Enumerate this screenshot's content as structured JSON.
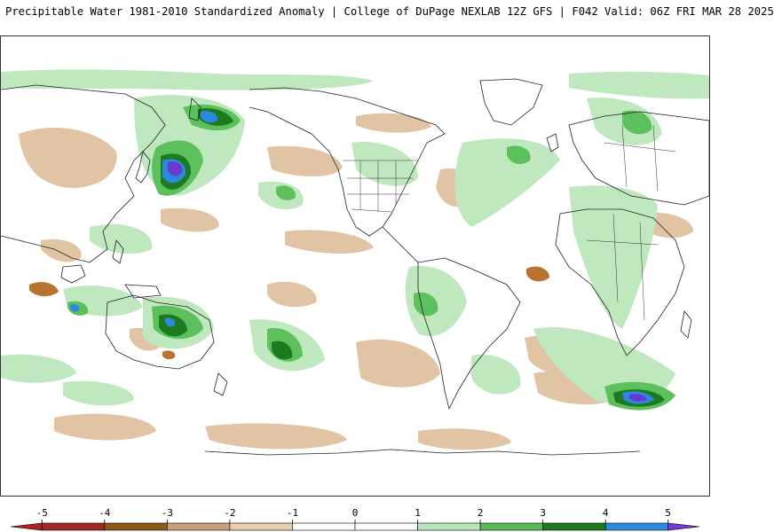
{
  "header": {
    "title": "Precipitable Water 1981-2010 Standardized Anomaly | College of DuPage NEXLAB  12Z GFS | F042 Valid: 06Z FRI MAR 28 2025"
  },
  "map": {
    "projection": "global equirectangular (Pacific-centered)",
    "variable": "precipitable water standardized anomaly"
  },
  "legend": {
    "ticks": [
      "-5",
      "-4",
      "-3",
      "-2",
      "-1",
      "0",
      "1",
      "2",
      "3",
      "4",
      "5"
    ],
    "bins": [
      {
        "from": -5.5,
        "to": -5,
        "color": "#b22222"
      },
      {
        "from": -5,
        "to": -4,
        "color": "#a02828"
      },
      {
        "from": -4,
        "to": -3,
        "color": "#8b5a14"
      },
      {
        "from": -3,
        "to": -2,
        "color": "#c9a07a"
      },
      {
        "from": -2,
        "to": -1,
        "color": "#e8ccb0"
      },
      {
        "from": -1,
        "to": 0,
        "color": "#ffffff"
      },
      {
        "from": 0,
        "to": 1,
        "color": "#ffffff"
      },
      {
        "from": 1,
        "to": 2,
        "color": "#b8e6b8"
      },
      {
        "from": 2,
        "to": 3,
        "color": "#58b858"
      },
      {
        "from": 3,
        "to": 4,
        "color": "#1e7a1e"
      },
      {
        "from": 4,
        "to": 5,
        "color": "#2a8adf"
      },
      {
        "from": 5,
        "to": 5.5,
        "color": "#7a3ad8"
      }
    ]
  },
  "palette": {
    "neg_light": "#e0c4a4",
    "neg_dark": "#b8742e",
    "pos_light": "#bfe8bf",
    "pos_mid": "#5cc05c",
    "pos_dark": "#1e7a1e",
    "pos_blue": "#2a8adf",
    "pos_purple": "#6a3ad0",
    "coast": "#222222"
  }
}
